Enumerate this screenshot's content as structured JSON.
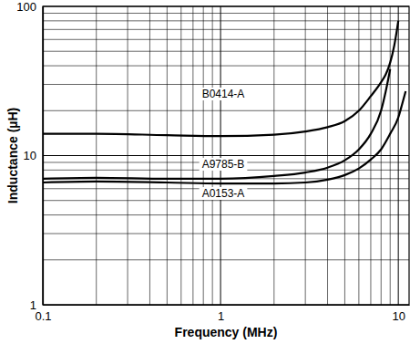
{
  "chart_data": {
    "type": "line",
    "x_label": "Frequency (MHz)",
    "y_label": "Inductance (µH)",
    "log": true,
    "grid": true,
    "xlim": [
      0.1,
      11.5
    ],
    "ylim": [
      1,
      100
    ],
    "xticks": [
      0.1,
      1,
      10
    ],
    "yticks": [
      1,
      10,
      100
    ],
    "series": [
      {
        "name": "B0414-A",
        "color": "#000000",
        "x": [
          0.1,
          0.2,
          0.5,
          1,
          2,
          3,
          4,
          5,
          6,
          7,
          8,
          8.5,
          9,
          9.5,
          10
        ],
        "values": [
          14,
          14,
          13.7,
          13.5,
          13.8,
          14.5,
          15.5,
          17,
          20,
          25,
          31,
          35,
          42,
          55,
          80
        ]
      },
      {
        "name": "A9785-B",
        "color": "#000000",
        "x": [
          0.1,
          0.2,
          0.5,
          1,
          2,
          3,
          4,
          5,
          6,
          7,
          8,
          8.5,
          9
        ],
        "values": [
          7,
          7.1,
          7,
          7,
          7.3,
          7.7,
          8.3,
          9.3,
          11,
          14,
          20,
          27,
          38
        ]
      },
      {
        "name": "A0153-A",
        "color": "#000000",
        "x": [
          0.1,
          0.2,
          0.5,
          1,
          2,
          3,
          4,
          5,
          6,
          7,
          8,
          9,
          10,
          10.5,
          11
        ],
        "values": [
          6.6,
          6.7,
          6.6,
          6.5,
          6.5,
          6.6,
          6.9,
          7.4,
          8.2,
          9.4,
          11,
          14,
          18,
          22,
          27
        ]
      }
    ]
  }
}
